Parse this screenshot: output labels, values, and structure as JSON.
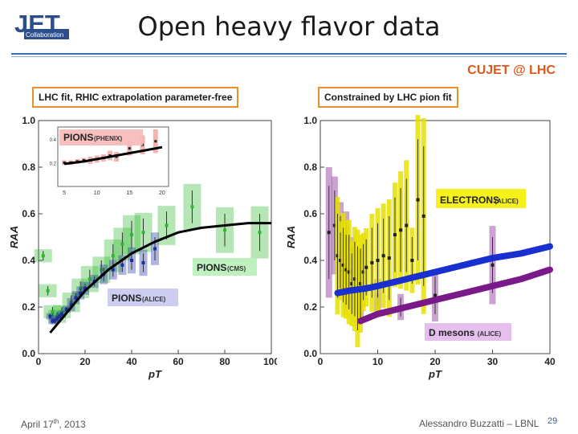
{
  "header": {
    "logo_text": "JET",
    "logo_subtext": "Collaboration",
    "title": "Open heavy flavor data",
    "subtitle": "CUJET @ LHC"
  },
  "footer": {
    "date_prefix": "April 17",
    "date_sup": "th",
    "date_year": ", 2013",
    "author": "Alessandro Buzzatti – LBNL",
    "page": "29"
  },
  "colors": {
    "accent": "#e0561b",
    "box_border": "#e8902e",
    "cms": "#2eb82e",
    "alice": "#1a2fa0",
    "phenix": "#d63b3b",
    "electrons": "#e6e000",
    "dmesons": "#7a1a8a"
  },
  "chart_data": [
    {
      "type": "scatter",
      "title": "LHC fit, RHIC extrapolation parameter-free",
      "xlabel": "pT",
      "ylabel": "RAA",
      "xlim": [
        0,
        100
      ],
      "ylim": [
        0,
        1.0
      ],
      "x_ticks": [
        "0",
        "20",
        "40",
        "60",
        "80",
        "100"
      ],
      "y_ticks": [
        "0.0",
        "0.2",
        "0.4",
        "0.6",
        "0.8",
        "1.0"
      ],
      "labels": {
        "cms": "PIONS (CMS)",
        "alice": "PIONS (ALICE)"
      },
      "series": [
        {
          "name": "PIONS (CMS)",
          "color": "#2eb82e",
          "x": [
            2,
            4,
            6,
            8,
            10,
            14,
            18,
            22,
            27,
            32,
            36,
            40,
            45,
            55,
            66,
            80,
            95
          ],
          "y": [
            0.42,
            0.27,
            0.18,
            0.16,
            0.18,
            0.22,
            0.28,
            0.32,
            0.36,
            0.42,
            0.47,
            0.51,
            0.52,
            0.55,
            0.63,
            0.53,
            0.52
          ],
          "err": [
            0.02,
            0.02,
            0.02,
            0.02,
            0.02,
            0.03,
            0.03,
            0.04,
            0.04,
            0.05,
            0.05,
            0.06,
            0.06,
            0.06,
            0.07,
            0.07,
            0.08
          ]
        },
        {
          "name": "PIONS (ALICE)",
          "color": "#1a2fa0",
          "x": [
            5,
            6,
            7,
            8,
            9,
            10,
            12,
            14,
            16,
            18,
            20,
            24,
            28,
            32,
            36,
            40,
            45,
            50
          ],
          "y": [
            0.16,
            0.14,
            0.14,
            0.15,
            0.16,
            0.17,
            0.19,
            0.21,
            0.24,
            0.26,
            0.28,
            0.31,
            0.34,
            0.36,
            0.38,
            0.4,
            0.39,
            0.45
          ],
          "err": [
            0.01,
            0.01,
            0.01,
            0.01,
            0.01,
            0.01,
            0.01,
            0.02,
            0.02,
            0.02,
            0.02,
            0.02,
            0.03,
            0.03,
            0.03,
            0.04,
            0.04,
            0.05
          ]
        }
      ],
      "curve": {
        "name": "CUJET",
        "color": "#000000",
        "x": [
          5,
          10,
          15,
          20,
          30,
          40,
          50,
          60,
          70,
          80,
          90,
          100
        ],
        "y": [
          0.09,
          0.15,
          0.21,
          0.27,
          0.36,
          0.43,
          0.48,
          0.52,
          0.54,
          0.55,
          0.56,
          0.56
        ]
      },
      "inset": {
        "label_main": "PIONS",
        "label_sub": "(PHENIX)",
        "xlim": [
          4,
          21
        ],
        "ylim": [
          0,
          0.5
        ],
        "x_ticks": [
          "5",
          "10",
          "15",
          "20"
        ],
        "y_ticks": [
          "0.2",
          "0.4"
        ],
        "points": {
          "x": [
            5,
            6,
            7,
            8,
            9,
            10,
            11,
            12,
            13,
            15,
            17,
            19
          ],
          "y": [
            0.2,
            0.2,
            0.21,
            0.22,
            0.22,
            0.23,
            0.24,
            0.26,
            0.25,
            0.32,
            0.35,
            0.38
          ],
          "err": [
            0.02,
            0.02,
            0.02,
            0.02,
            0.03,
            0.03,
            0.03,
            0.04,
            0.04,
            0.06,
            0.08,
            0.1
          ]
        },
        "curve": {
          "x": [
            5,
            8,
            11,
            14,
            17,
            20
          ],
          "y": [
            0.19,
            0.21,
            0.24,
            0.27,
            0.3,
            0.33
          ]
        }
      }
    },
    {
      "type": "scatter",
      "title": "Constrained by LHC pion fit",
      "xlabel": "pT",
      "ylabel": "RAA",
      "xlim": [
        0,
        40
      ],
      "ylim": [
        0,
        1.0
      ],
      "x_ticks": [
        "0",
        "10",
        "20",
        "30",
        "40"
      ],
      "y_ticks": [
        "0.0",
        "0.2",
        "0.4",
        "0.6",
        "0.8",
        "1.0"
      ],
      "labels": {
        "electrons": "ELECTRONS",
        "electrons_sub": "(ALICE)",
        "dmesons": "D mesons",
        "dmesons_sub": "(ALICE)"
      },
      "series": [
        {
          "name": "ELECTRONS (ALICE)",
          "color": "#e6e000",
          "x": [
            3,
            3.5,
            4,
            4.5,
            5,
            5.5,
            6,
            6.5,
            7,
            7.5,
            8,
            9,
            10,
            11,
            12,
            13,
            14,
            15,
            16,
            17,
            18
          ],
          "y": [
            0.42,
            0.4,
            0.38,
            0.36,
            0.35,
            0.3,
            0.32,
            0.28,
            0.3,
            0.35,
            0.37,
            0.39,
            0.4,
            0.42,
            0.41,
            0.51,
            0.53,
            0.55,
            0.4,
            0.66,
            0.59
          ],
          "err": [
            0.18,
            0.12,
            0.16,
            0.15,
            0.16,
            0.13,
            0.16,
            0.18,
            0.15,
            0.12,
            0.12,
            0.15,
            0.16,
            0.16,
            0.18,
            0.16,
            0.18,
            0.2,
            0.1,
            0.26,
            0.3
          ]
        },
        {
          "name": "D mesons (ALICE)",
          "color": "#7a1a8a",
          "x": [
            1.5,
            2.5,
            3.5,
            4.5,
            5.5,
            7,
            10,
            14,
            20,
            30
          ],
          "y": [
            0.52,
            0.55,
            0.44,
            0.4,
            0.36,
            0.2,
            0.25,
            0.2,
            0.25,
            0.38
          ],
          "err": [
            0.2,
            0.15,
            0.15,
            0.15,
            0.1,
            0.05,
            0.05,
            0.04,
            0.08,
            0.12
          ]
        }
      ],
      "curves": [
        {
          "name": "electrons",
          "color": "#1a2fd0",
          "x": [
            3,
            5,
            8,
            10,
            15,
            20,
            25,
            30,
            35,
            40
          ],
          "y": [
            0.26,
            0.27,
            0.28,
            0.29,
            0.32,
            0.35,
            0.38,
            0.41,
            0.43,
            0.46
          ]
        },
        {
          "name": "D mesons",
          "color": "#7a1a8a",
          "x": [
            7,
            10,
            15,
            20,
            25,
            30,
            35,
            40
          ],
          "y": [
            0.14,
            0.17,
            0.2,
            0.23,
            0.26,
            0.29,
            0.32,
            0.36
          ]
        }
      ]
    }
  ]
}
